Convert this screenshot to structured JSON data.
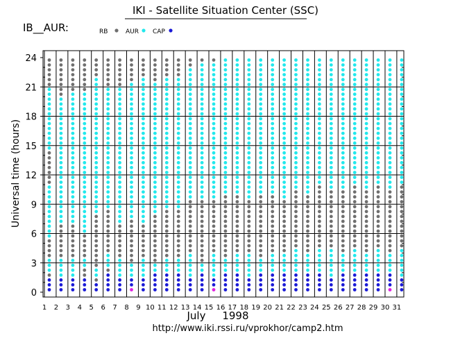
{
  "header": {
    "title": "IKI - Satellite Situation Center (SSC)",
    "series_label": "IB__AUR:"
  },
  "footer": {
    "url": "http://www.iki.rssi.ru/vprokhor/camp2.htm"
  },
  "colors": {
    "RB": "#6f6f6f",
    "AUR": "#22e8ec",
    "CAP": "#1a1ad6",
    "other": "#e020e0",
    "grid": "#000000"
  },
  "chart_data": {
    "type": "scatter",
    "title": "IKI - Satellite Situation Center (SSC)",
    "series_label": "IB__AUR:",
    "legend": [
      {
        "key": "RB",
        "label": "RB"
      },
      {
        "key": "AUR",
        "label": "AUR"
      },
      {
        "key": "CAP",
        "label": "CAP"
      }
    ],
    "legend_position": "top",
    "xlabel": "July     1998",
    "ylabel": "Universal time  (hours)",
    "x_ticks": [
      1,
      2,
      3,
      4,
      5,
      6,
      7,
      8,
      9,
      10,
      11,
      12,
      13,
      14,
      15,
      16,
      17,
      18,
      19,
      20,
      21,
      22,
      23,
      24,
      25,
      26,
      27,
      28,
      29,
      30,
      31
    ],
    "xlim": [
      1,
      32
    ],
    "y_ticks": [
      0,
      3,
      6,
      9,
      12,
      15,
      18,
      21,
      24
    ],
    "ylim": [
      0,
      24
    ],
    "grid": true,
    "sample_interval_hours": 0.5,
    "code_key": {
      "0": "RB",
      "1": "AUR",
      "2": "CAP",
      "3": "other"
    },
    "day_codes": {
      "1": "2220111000011111111111000000011111111111110000000000011111122200",
      "2": "2221111000000011111111111111111111111111000000000000000012222200",
      "3": "2221111000000011111111111111111111111111100000000000000000000000",
      "4": "2220011000001111111111111111111111111111100000000000000000000000",
      "5": "2201100000000000111111111111111111111111111100000000000000000000",
      "6": "2222011100000000011111111111111111111111110000000000000000000000",
      "7": "2221111000000011111111111111111111111111110000000000000000000000",
      "8": "3221110000000001111111111111111111111111111000000000000000000000",
      "9": "2221111000000011111111111111111111111111111100000000000000000000",
      "10": "2222110000000000111111111111111111111111111000000000000000000000",
      "11": "2222111000000000011111111111111111111111111100000000000000000000",
      "12": "2222111000000000011111111111111111111111111100000000000000000000",
      "13": "2221111100000000000111111111111111111111111111000000000000000000",
      "14": "2222110000000000000111111111111111111111111111100000000000000000",
      "15": "3221111100000000000111111111111111111111111111100000000000000000",
      "16": "2222111000000000000011111111111111111111111111111000000000000000",
      "17": "2222111100000000000011111111111111111111111111111000000000000000",
      "18": "2221111100000000000111111111111111111111111111110000000000000000",
      "19": "2222111000000000000011111111111111111111111111111000000000000000",
      "20": "2222111100000000000011111111111111111111111111111000000000000000",
      "21": "2222111100000000000111111111111111111111111111111100000000000000",
      "22": "2222111110000000000001111111111111111111111111111100000000000000",
      "23": "2222111100000000000011111111111111111111111111111000000000000000",
      "24": "2222111110000000000000111111111111111111111111111110000000000000",
      "25": "2221111110000000000001111111111111111111111111111110000000000000",
      "26": "2222111100000000000001111111111111111111111111111100000000000000",
      "27": "2222111110000000000000111111111111111111111111111110000000000000",
      "28": "2222111100000000000001111111111111111111111111111100000000000000",
      "29": "2222111110000000000000111111111111111111111111111111000000000000",
      "30": "3222111100000000000001111111111111111111111111111100000000000000",
      "31": "2221111110000000000000111111111111111111111111111111000000000000"
    }
  }
}
